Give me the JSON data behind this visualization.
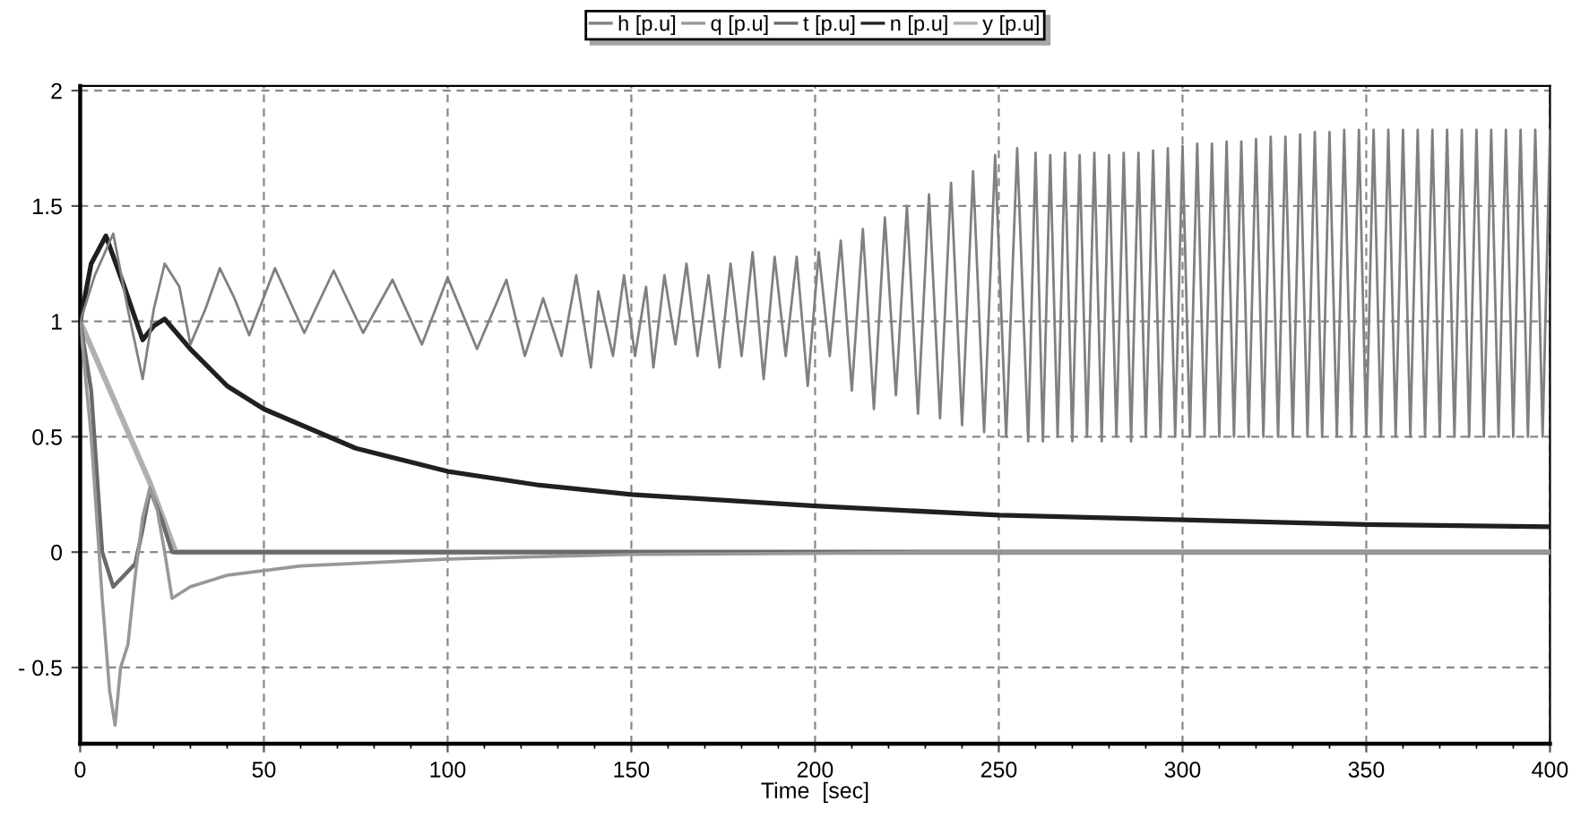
{
  "chart_data": {
    "type": "line",
    "xlabel": "Time  [sec]",
    "xlim": [
      0,
      400
    ],
    "ylim": [
      -0.83,
      2.02
    ],
    "xticks": [
      0,
      50,
      100,
      150,
      200,
      250,
      300,
      350,
      400,
      {
        "value": 10,
        "label": null
      },
      {
        "value": 20,
        "label": null
      },
      {
        "value": 30,
        "label": null
      },
      {
        "value": 40,
        "label": null
      },
      {
        "value": 60,
        "label": null
      },
      {
        "value": 70,
        "label": null
      },
      {
        "value": 80,
        "label": null
      },
      {
        "value": 90,
        "label": null
      },
      {
        "value": 110,
        "label": null
      },
      {
        "value": 120,
        "label": null
      },
      {
        "value": 130,
        "label": null
      },
      {
        "value": 140,
        "label": null
      },
      {
        "value": 160,
        "label": null
      },
      {
        "value": 170,
        "label": null
      },
      {
        "value": 180,
        "label": null
      },
      {
        "value": 190,
        "label": null
      },
      {
        "value": 210,
        "label": null
      },
      {
        "value": 220,
        "label": null
      },
      {
        "value": 230,
        "label": null
      },
      {
        "value": 240,
        "label": null
      },
      {
        "value": 260,
        "label": null
      },
      {
        "value": 270,
        "label": null
      },
      {
        "value": 280,
        "label": null
      },
      {
        "value": 290,
        "label": null
      },
      {
        "value": 310,
        "label": null
      },
      {
        "value": 320,
        "label": null
      },
      {
        "value": 330,
        "label": null
      },
      {
        "value": 340,
        "label": null
      },
      {
        "value": 360,
        "label": null
      },
      {
        "value": 370,
        "label": null
      },
      {
        "value": 380,
        "label": null
      },
      {
        "value": 390,
        "label": null
      }
    ],
    "yticks": [
      {
        "value": -0.5,
        "label": "- 0.5"
      },
      0,
      0.5,
      1,
      1.5,
      2
    ],
    "grid": true,
    "legend": "top",
    "line_style": "solid",
    "marker": "none",
    "series": [
      {
        "name": "h [p.u]",
        "color": "#808080",
        "x": [
          0,
          4,
          9,
          13,
          17,
          20,
          23,
          27,
          30,
          34,
          38,
          42,
          46,
          53,
          61,
          69,
          77,
          85,
          93,
          100,
          108,
          116,
          121,
          126,
          131,
          135,
          139,
          141,
          145,
          148,
          151,
          154,
          156,
          159,
          162,
          165,
          168,
          171,
          174,
          177,
          180,
          183,
          186,
          189,
          192,
          195,
          198,
          201,
          204,
          207,
          210,
          213,
          216,
          219,
          222,
          225,
          228,
          231,
          234,
          237,
          240,
          243,
          246,
          249,
          252,
          255,
          258,
          260,
          262,
          264,
          266,
          268,
          270,
          272,
          274,
          276,
          278,
          280,
          282,
          284,
          286,
          288,
          290,
          292,
          294,
          296,
          298,
          300,
          302,
          304,
          306,
          308,
          310,
          312,
          314,
          316,
          318,
          320,
          322,
          324,
          326,
          328,
          330,
          332,
          334,
          336,
          338,
          340,
          342,
          344,
          346,
          348,
          350,
          352,
          354,
          356,
          358,
          360,
          362,
          364,
          366,
          368,
          370,
          372,
          374,
          376,
          378,
          380,
          382,
          384,
          386,
          388,
          390,
          392,
          394,
          396,
          398,
          400
        ],
        "values": [
          1,
          1.2,
          1.38,
          1.05,
          0.75,
          1.05,
          1.25,
          1.15,
          0.9,
          1.05,
          1.23,
          1.1,
          0.94,
          1.23,
          0.95,
          1.22,
          0.95,
          1.18,
          0.9,
          1.19,
          0.88,
          1.18,
          0.85,
          1.1,
          0.85,
          1.2,
          0.8,
          1.13,
          0.85,
          1.2,
          0.85,
          1.15,
          0.8,
          1.2,
          0.9,
          1.25,
          0.85,
          1.2,
          0.8,
          1.25,
          0.85,
          1.3,
          0.75,
          1.28,
          0.85,
          1.28,
          0.72,
          1.3,
          0.85,
          1.35,
          0.7,
          1.4,
          0.62,
          1.45,
          0.68,
          1.5,
          0.6,
          1.55,
          0.58,
          1.6,
          0.55,
          1.65,
          0.52,
          1.72,
          0.5,
          1.75,
          0.48,
          1.73,
          0.48,
          1.72,
          0.5,
          1.73,
          0.48,
          1.72,
          0.5,
          1.73,
          0.48,
          1.72,
          0.5,
          1.73,
          0.48,
          1.73,
          0.5,
          1.74,
          0.5,
          1.75,
          0.5,
          1.76,
          0.5,
          1.77,
          0.5,
          1.77,
          0.5,
          1.78,
          0.5,
          1.78,
          0.5,
          1.79,
          0.5,
          1.8,
          0.5,
          1.8,
          0.5,
          1.81,
          0.5,
          1.82,
          0.5,
          1.82,
          0.5,
          1.83,
          0.5,
          1.83,
          0.5,
          1.83,
          0.5,
          1.83,
          0.5,
          1.83,
          0.5,
          1.83,
          0.5,
          1.83,
          0.5,
          1.83,
          0.5,
          1.83,
          0.5,
          1.83,
          0.5,
          1.83,
          0.5,
          1.83,
          0.5,
          1.83,
          0.5,
          1.83,
          0.5,
          1.83
        ]
      },
      {
        "name": "q [p.u]",
        "color": "#989898",
        "x": [
          0,
          3,
          6,
          8,
          9.5,
          11,
          13,
          15,
          17,
          19,
          21,
          23,
          25,
          30,
          40,
          60,
          100,
          150,
          200,
          230,
          400
        ],
        "values": [
          1,
          0.5,
          -0.2,
          -0.6,
          -0.75,
          -0.5,
          -0.4,
          -0.1,
          0.15,
          0.28,
          0.18,
          0,
          -0.2,
          -0.15,
          -0.1,
          -0.06,
          -0.03,
          -0.01,
          -0.005,
          0,
          0
        ]
      },
      {
        "name": "t [p.u]",
        "color": "#6a6a6a",
        "x": [
          0,
          3,
          6,
          9,
          12,
          15,
          17,
          19,
          22,
          25,
          400
        ],
        "values": [
          1,
          0.7,
          0,
          -0.15,
          -0.1,
          -0.05,
          0.1,
          0.27,
          0.15,
          0,
          0
        ]
      },
      {
        "name": "n [p.u]",
        "color": "#202020",
        "x": [
          0,
          3,
          7,
          12,
          17,
          20,
          23,
          30,
          40,
          50,
          75,
          100,
          125,
          150,
          200,
          250,
          300,
          350,
          400
        ],
        "values": [
          1,
          1.25,
          1.37,
          1.15,
          0.92,
          0.98,
          1.01,
          0.88,
          0.72,
          0.62,
          0.45,
          0.35,
          0.29,
          0.25,
          0.2,
          0.16,
          0.14,
          0.12,
          0.11
        ]
      },
      {
        "name": "y [p.u]",
        "color": "#b0b0b0",
        "x": [
          0,
          19,
          26,
          400
        ],
        "values": [
          1,
          0.3,
          0,
          0
        ]
      }
    ]
  }
}
